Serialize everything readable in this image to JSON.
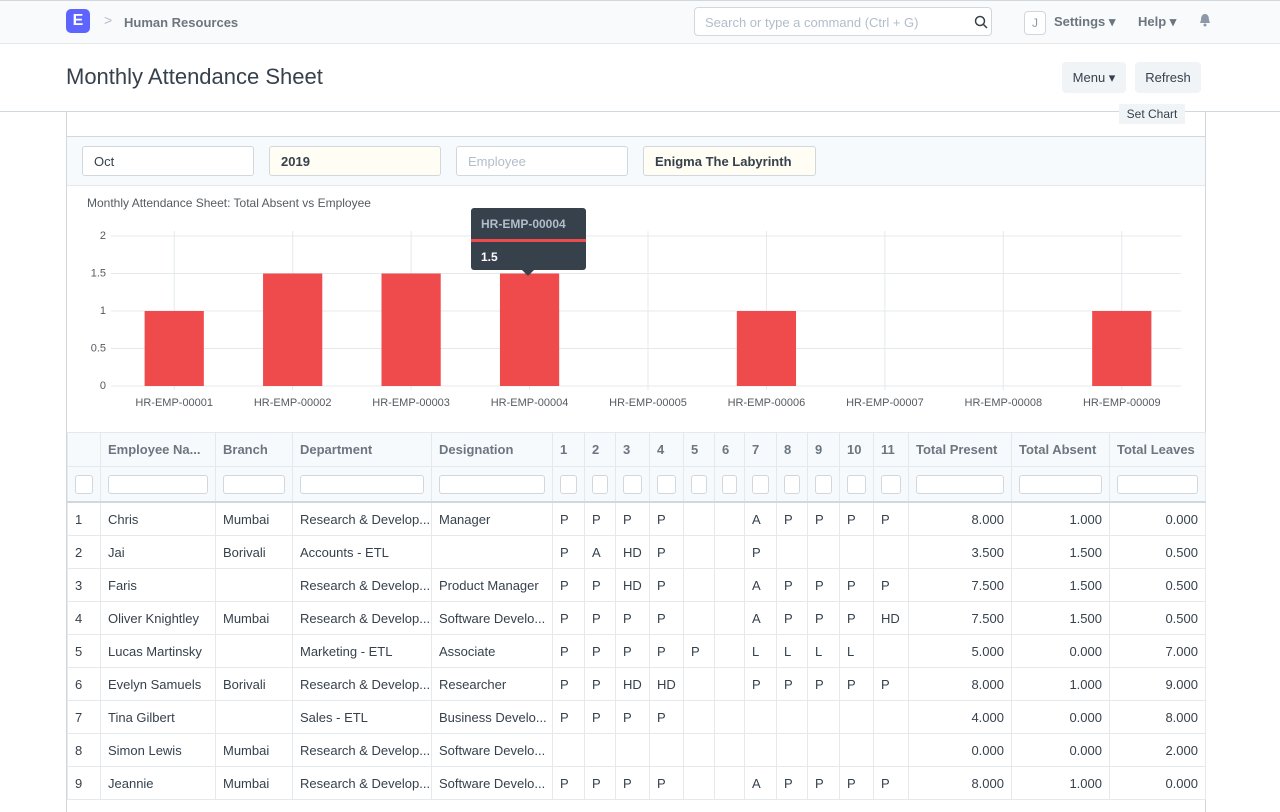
{
  "navbar": {
    "logo": "E",
    "breadcrumb": "Human Resources",
    "search_placeholder": "Search or type a command (Ctrl + G)",
    "avatar": "J",
    "settings": "Settings",
    "help": "Help"
  },
  "page": {
    "title": "Monthly Attendance Sheet",
    "menu_button": "Menu",
    "refresh_button": "Refresh",
    "set_chart": "Set Chart"
  },
  "filters": {
    "month": "Oct",
    "year": "2019",
    "employee_placeholder": "Employee",
    "company": "Enigma The Labyrinth"
  },
  "chart_data": {
    "type": "bar",
    "title": "Monthly Attendance Sheet: Total Absent vs Employee",
    "categories": [
      "HR-EMP-00001",
      "HR-EMP-00002",
      "HR-EMP-00003",
      "HR-EMP-00004",
      "HR-EMP-00005",
      "HR-EMP-00006",
      "HR-EMP-00007",
      "HR-EMP-00008",
      "HR-EMP-00009"
    ],
    "values": [
      1,
      1.5,
      1.5,
      1.5,
      0,
      1,
      0,
      0,
      1
    ],
    "color": "#ef4a4c",
    "ylim": [
      0,
      2
    ],
    "yticks": [
      0,
      0.5,
      1,
      1.5,
      2
    ],
    "grid": true,
    "tooltip_index": 3
  },
  "table": {
    "columns": [
      "Employee Na...",
      "Branch",
      "Department",
      "Designation",
      "1",
      "2",
      "3",
      "4",
      "5",
      "6",
      "7",
      "8",
      "9",
      "10",
      "11",
      "Total Present",
      "Total Absent",
      "Total Leaves"
    ],
    "rows": [
      [
        "1",
        "Chris",
        "Mumbai",
        "Research & Develop...",
        "Manager",
        "P",
        "P",
        "P",
        "P",
        null,
        null,
        "A",
        "P",
        "P",
        "P",
        "P",
        "8.000",
        "1.000",
        "0.000"
      ],
      [
        "2",
        "Jai",
        "Borivali",
        "Accounts - ETL",
        null,
        "P",
        "A",
        "HD",
        "P",
        null,
        null,
        "P",
        null,
        null,
        null,
        null,
        "3.500",
        "1.500",
        "0.500"
      ],
      [
        "3",
        "Faris",
        null,
        "Research & Develop...",
        "Product Manager",
        "P",
        "P",
        "HD",
        "P",
        null,
        null,
        "A",
        "P",
        "P",
        "P",
        "P",
        "7.500",
        "1.500",
        "0.500"
      ],
      [
        "4",
        "Oliver Knightley",
        "Mumbai",
        "Research & Develop...",
        "Software Develo...",
        "P",
        "P",
        "P",
        "P",
        null,
        null,
        "A",
        "P",
        "P",
        "P",
        "HD",
        "7.500",
        "1.500",
        "0.500"
      ],
      [
        "5",
        "Lucas Martinsky",
        null,
        "Marketing - ETL",
        "Associate",
        "P",
        "P",
        "P",
        "P",
        "P",
        null,
        "L",
        "L",
        "L",
        "L",
        null,
        "5.000",
        "0.000",
        "7.000"
      ],
      [
        "6",
        "Evelyn Samuels",
        "Borivali",
        "Research & Develop...",
        "Researcher",
        "P",
        "P",
        "HD",
        "HD",
        null,
        null,
        "P",
        "P",
        "P",
        "P",
        "P",
        "8.000",
        "1.000",
        "9.000"
      ],
      [
        "7",
        "Tina Gilbert",
        null,
        "Sales - ETL",
        "Business Develo...",
        "P",
        "P",
        "P",
        "P",
        null,
        null,
        null,
        null,
        null,
        null,
        null,
        "4.000",
        "0.000",
        "8.000"
      ],
      [
        "8",
        "Simon Lewis",
        "Mumbai",
        "Research & Develop...",
        "Software Develo...",
        null,
        null,
        null,
        null,
        null,
        null,
        null,
        null,
        null,
        null,
        null,
        "0.000",
        "0.000",
        "2.000"
      ],
      [
        "9",
        "Jeannie",
        "Mumbai",
        "Research & Develop...",
        "Software Develo...",
        "P",
        "P",
        "P",
        "P",
        null,
        null,
        "A",
        "P",
        "P",
        "P",
        "P",
        "8.000",
        "1.000",
        "0.000"
      ]
    ]
  }
}
